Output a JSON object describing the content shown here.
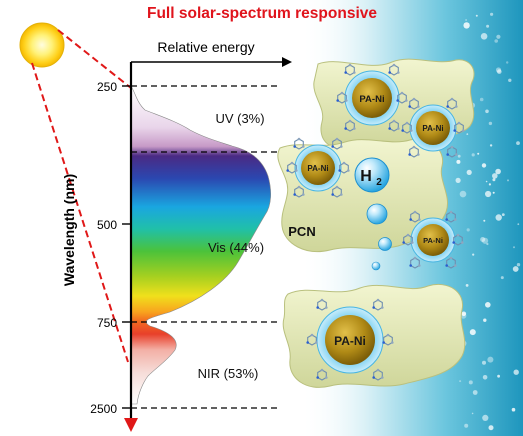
{
  "title": "Full solar-spectrum responsive",
  "axes": {
    "x_label": "Relative energy",
    "y_label": "Wavelength (nm)",
    "ticks": [
      "250",
      "500",
      "750",
      "2500"
    ]
  },
  "spectrum_regions": [
    {
      "label": "UV (3%)"
    },
    {
      "label": "Vis (44%)"
    },
    {
      "label": "NIR (53%)"
    }
  ],
  "photocatalyst": {
    "support_label": "PCN",
    "cocatalyst_label": "PA-Ni",
    "product_label": "H",
    "product_subscript": "2"
  },
  "colors": {
    "title": "#e0141c",
    "dashed_lines": "#e01818",
    "sun": "#ffd21e",
    "ni_core": "#b08a16",
    "ni_shell": "#62c6ee",
    "pcn_sheet": "#e4eab4",
    "water": "#2fa7c6"
  },
  "icons": [
    "sun-icon",
    "hydrogen-bubble-icon",
    "porphyrin-ligand-icon"
  ]
}
